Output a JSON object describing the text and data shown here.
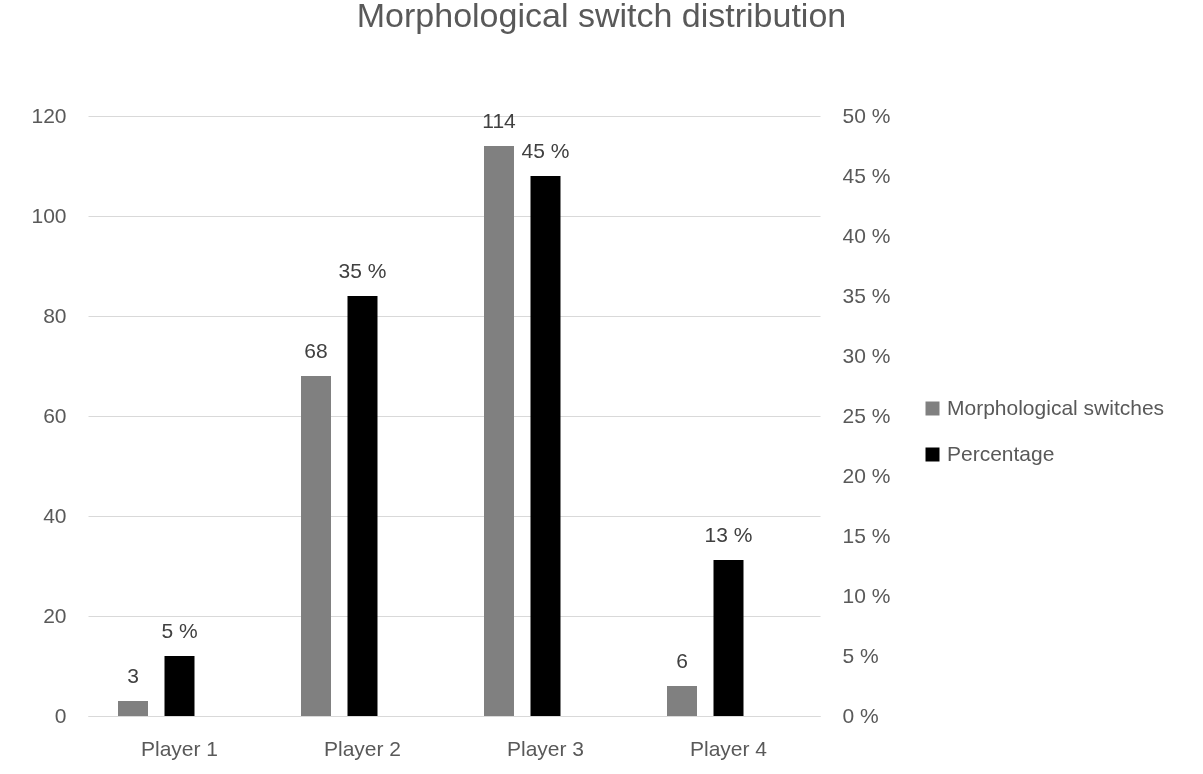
{
  "chart_data": {
    "type": "bar",
    "title": "Morphological switch distribution",
    "categories": [
      "Player 1",
      "Player 2",
      "Player 3",
      "Player 4"
    ],
    "series": [
      {
        "name": "Morphological switches",
        "color": "#808080",
        "values": [
          3,
          68,
          114,
          6
        ],
        "value_labels": [
          "3",
          "68",
          "114",
          "6"
        ]
      },
      {
        "name": "Percentage",
        "color": "#000000",
        "axis": "y2",
        "values": [
          5,
          35,
          45,
          13
        ],
        "value_labels": [
          "5 %",
          "35 %",
          "45 %",
          "13 %"
        ]
      }
    ],
    "ylim": [
      0,
      120
    ],
    "yticks": [
      0,
      20,
      40,
      60,
      80,
      100,
      120
    ],
    "y2lim": [
      0,
      50
    ],
    "y2ticks": [
      {
        "value": 0,
        "label": "0 %"
      },
      {
        "value": 5,
        "label": "5 %"
      },
      {
        "value": 10,
        "label": "10 %"
      },
      {
        "value": 15,
        "label": "15 %"
      },
      {
        "value": 20,
        "label": "20 %"
      },
      {
        "value": 25,
        "label": "25 %"
      },
      {
        "value": 30,
        "label": "30 %"
      },
      {
        "value": 35,
        "label": "35 %"
      },
      {
        "value": 40,
        "label": "40 %"
      },
      {
        "value": 45,
        "label": "45 %"
      },
      {
        "value": 50,
        "label": "50 %"
      }
    ],
    "grid": "y",
    "legend": "right"
  }
}
